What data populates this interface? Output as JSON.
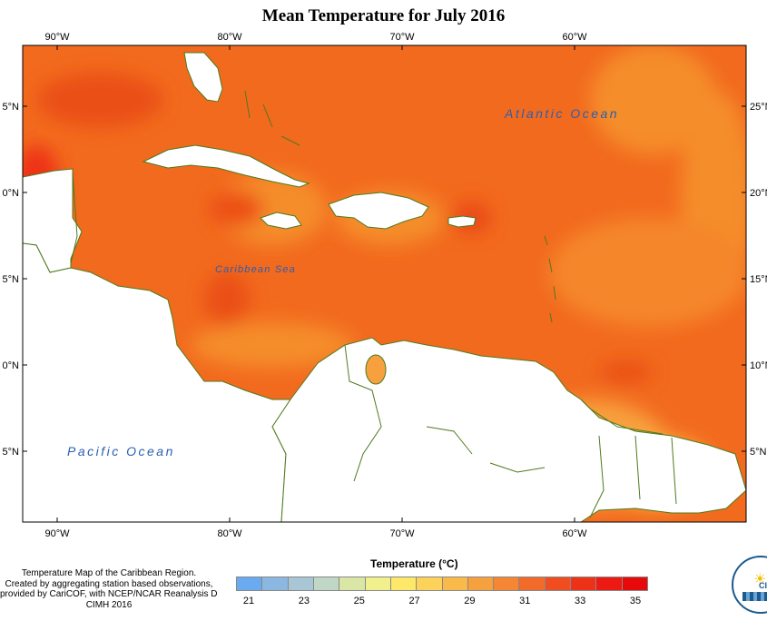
{
  "title": "Mean Temperature for July 2016",
  "axes": {
    "longitude_ticks": [
      "90°W",
      "80°W",
      "70°W",
      "60°W"
    ],
    "latitude_ticks_left": [
      "5°N",
      "0°N",
      "5°N",
      "0°N",
      "5°N"
    ],
    "latitude_ticks_right": [
      "25°N",
      "20°N",
      "15°N",
      "10°N",
      "5°N"
    ]
  },
  "labels": {
    "atlantic": "Atlantic Ocean",
    "caribbean": "Caribbean Sea",
    "pacific": "Pacific Ocean"
  },
  "credit": [
    "Temperature Map of the Caribbean Region.",
    "Created by aggregating station based observations,",
    "provided by CariCOF, with NCEP/NCAR Reanalysis Data.",
    "CIMH 2016"
  ],
  "legend": {
    "title": "Temperature (°C)",
    "tick_labels": [
      "21",
      "23",
      "25",
      "27",
      "29",
      "31",
      "33",
      "35"
    ],
    "swatches": [
      "#6aaaf0",
      "#8cb7e0",
      "#a9c6d6",
      "#c1d7c6",
      "#d9e6a6",
      "#f0f08c",
      "#fde86a",
      "#fcd25a",
      "#f9ba4a",
      "#f7a03e",
      "#f58634",
      "#f26b2a",
      "#f04e20",
      "#ee3218",
      "#ec1a12",
      "#e80a0a"
    ]
  },
  "colors": {
    "base": "#f26a1e",
    "warm": "#ea4f14",
    "cool": "#f58d2c",
    "land": "#ffffff",
    "coast": "#4e7a1e"
  },
  "logo": {
    "text": "CIMH"
  }
}
